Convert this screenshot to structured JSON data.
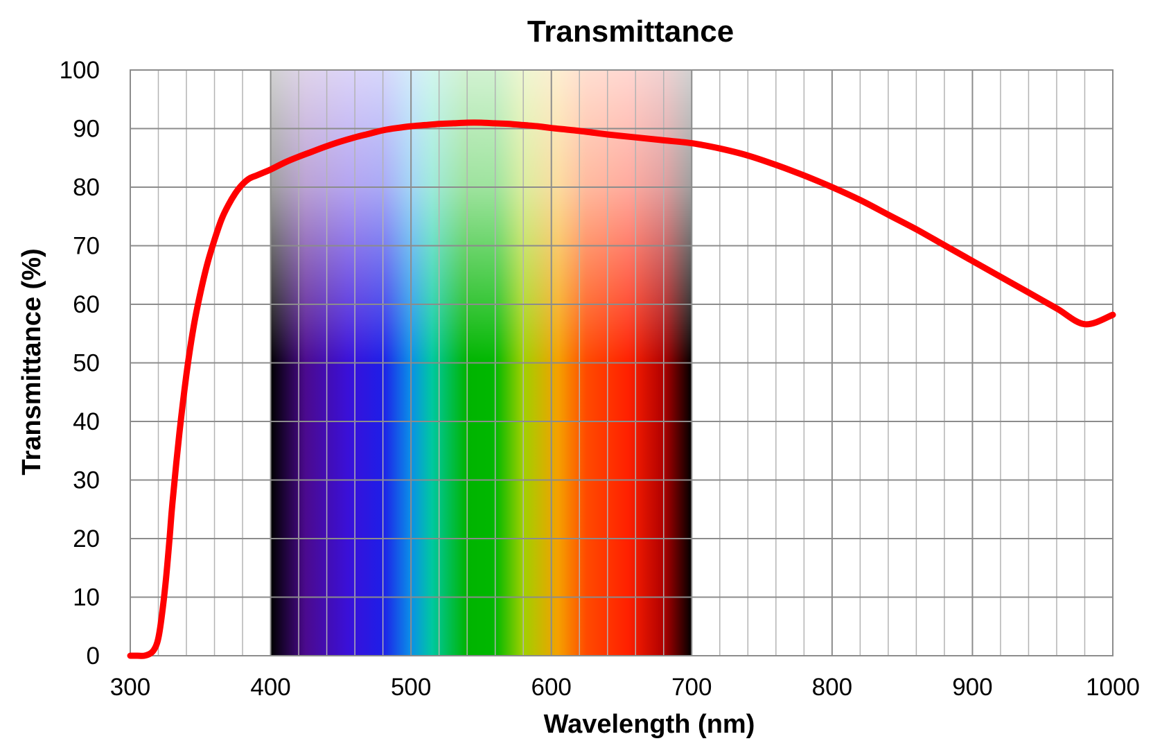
{
  "chart_data": {
    "type": "line",
    "title": "Transmittance",
    "xlabel": "Wavelength (nm)",
    "ylabel": "Transmittance (%)",
    "xlim": [
      300,
      1000
    ],
    "ylim": [
      0,
      100
    ],
    "x_ticks": [
      300,
      400,
      500,
      600,
      700,
      800,
      900,
      1000
    ],
    "y_ticks": [
      0,
      10,
      20,
      30,
      40,
      50,
      60,
      70,
      80,
      90,
      100
    ],
    "x_minor_step": 20,
    "grid": true,
    "legend": "none",
    "visible_spectrum_band": {
      "range": [
        400,
        700
      ],
      "colors": [
        {
          "wavelength": 400,
          "color": "#000000"
        },
        {
          "wavelength": 425,
          "color": "#4b0a8f"
        },
        {
          "wavelength": 455,
          "color": "#3a10d8"
        },
        {
          "wavelength": 480,
          "color": "#1e1ee8"
        },
        {
          "wavelength": 500,
          "color": "#0a90e8"
        },
        {
          "wavelength": 515,
          "color": "#00c8a0"
        },
        {
          "wavelength": 540,
          "color": "#00b400"
        },
        {
          "wavelength": 560,
          "color": "#00b800"
        },
        {
          "wavelength": 580,
          "color": "#a0d000"
        },
        {
          "wavelength": 605,
          "color": "#f5a000"
        },
        {
          "wavelength": 625,
          "color": "#ff4a00"
        },
        {
          "wavelength": 655,
          "color": "#ff2000"
        },
        {
          "wavelength": 680,
          "color": "#b00000"
        },
        {
          "wavelength": 700,
          "color": "#000000"
        }
      ]
    },
    "series": [
      {
        "color": "#ff0000",
        "x": [
          300,
          305,
          310,
          315,
          318,
          320,
          322,
          325,
          328,
          330,
          335,
          340,
          345,
          350,
          355,
          360,
          365,
          370,
          375,
          380,
          385,
          390,
          395,
          400,
          410,
          420,
          430,
          440,
          450,
          460,
          470,
          480,
          490,
          500,
          510,
          520,
          530,
          540,
          550,
          560,
          570,
          580,
          590,
          600,
          620,
          640,
          660,
          680,
          700,
          720,
          740,
          760,
          780,
          800,
          820,
          840,
          860,
          880,
          900,
          920,
          940,
          960,
          980,
          1000
        ],
        "y": [
          0,
          0,
          0,
          0.5,
          1.5,
          3,
          6,
          12,
          20,
          26,
          38,
          48,
          56,
          62,
          67,
          71,
          74.5,
          77,
          79,
          80.5,
          81.5,
          82,
          82.5,
          83,
          84.2,
          85.2,
          86.1,
          87,
          87.8,
          88.5,
          89.1,
          89.7,
          90.1,
          90.4,
          90.6,
          90.8,
          90.9,
          91.0,
          91.0,
          90.9,
          90.8,
          90.6,
          90.4,
          90.1,
          89.6,
          89.0,
          88.5,
          88.0,
          87.5,
          86.6,
          85.4,
          83.8,
          82.0,
          80.0,
          77.8,
          75.3,
          72.8,
          70.1,
          67.4,
          64.7,
          62.0,
          59.3,
          56.6,
          58.2
        ]
      }
    ]
  }
}
